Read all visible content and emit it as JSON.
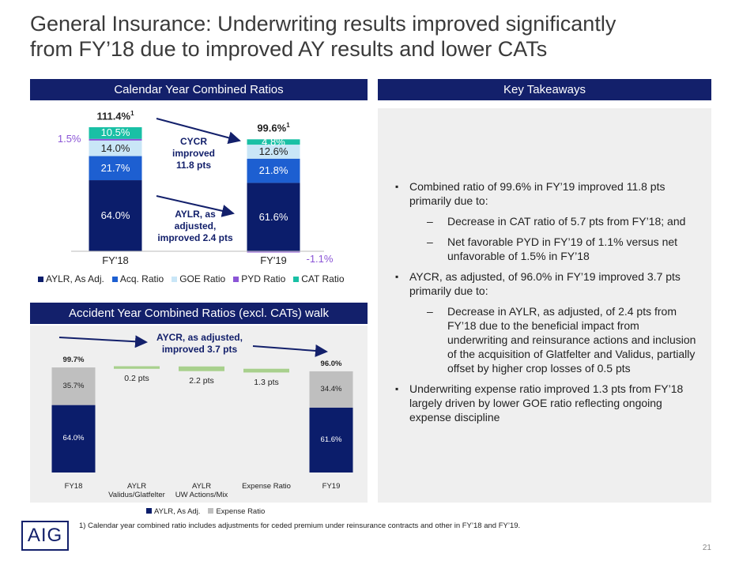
{
  "title": "General Insurance: Underwriting results improved significantly\nfrom FY’18 due to improved AY results and lower CATs",
  "chart_data": [
    {
      "type": "stacked-bar",
      "header": "Calendar Year Combined Ratios",
      "categories": [
        "FY'18",
        "FY'19"
      ],
      "series": [
        {
          "name": "AYLR, As Adj.",
          "color": "#0b1d6b",
          "values": [
            64.0,
            61.6
          ],
          "value_labels": [
            "64.0%",
            "61.6%"
          ]
        },
        {
          "name": "Acq. Ratio",
          "color": "#1d5fd1",
          "values": [
            21.7,
            21.8
          ],
          "value_labels": [
            "21.7%",
            "21.8%"
          ]
        },
        {
          "name": "GOE Ratio",
          "color": "#c9e6f7",
          "values": [
            14.0,
            12.6
          ],
          "value_labels": [
            "14.0%",
            "12.6%"
          ]
        },
        {
          "name": "PYD Ratio",
          "color": "#8b55d6",
          "values": [
            1.5,
            -1.1
          ],
          "value_labels": [
            "1.5%",
            "-1.1%"
          ]
        },
        {
          "name": "CAT Ratio",
          "color": "#19c0a5",
          "values": [
            10.5,
            4.8
          ],
          "value_labels": [
            "10.5%",
            "4.8%"
          ]
        }
      ],
      "totals": {
        "values": [
          111.4,
          99.6
        ],
        "value_labels": [
          "111.4%",
          "99.6%"
        ],
        "footnote_marker": "1"
      },
      "annotations": [
        "CYCR\nimproved\n11.8 pts",
        "AYLR, as\nadjusted,\nimproved 2.4 pts"
      ]
    },
    {
      "type": "waterfall",
      "header": "Accident Year Combined Ratios (excl. CATs) walk",
      "categories": [
        "FY18",
        "AYLR\nValidus/Glatfelter",
        "AYLR\nUW Actions/Mix",
        "Expense Ratio",
        "FY19"
      ],
      "series": [
        {
          "name": "AYLR, As Adj.",
          "color": "#0b1d6b",
          "values": [
            64.0,
            null,
            null,
            null,
            61.6
          ],
          "value_labels": [
            "64.0%",
            null,
            null,
            null,
            "61.6%"
          ]
        },
        {
          "name": "Expense Ratio",
          "color": "#bfbfbf",
          "values": [
            35.7,
            null,
            null,
            null,
            34.4
          ],
          "value_labels": [
            "35.7%",
            null,
            null,
            null,
            "34.4%"
          ]
        }
      ],
      "steps": {
        "color": "#a8d08d",
        "values": [
          null,
          0.2,
          2.2,
          1.3,
          null
        ],
        "value_labels": [
          null,
          "0.2 pts",
          "2.2 pts",
          "1.3 pts",
          null
        ]
      },
      "totals": {
        "values": [
          99.7,
          null,
          null,
          null,
          96.0
        ],
        "value_labels": [
          "99.7%",
          null,
          null,
          null,
          "96.0%"
        ]
      },
      "annotations": [
        "AYCR, as adjusted,\nimproved 3.7 pts"
      ]
    }
  ],
  "takeaways": {
    "header": "Key Takeaways",
    "bullets": [
      {
        "text": "Combined ratio of 99.6% in FY’19 improved 11.8 pts primarily due to:",
        "sub": [
          "Decrease in CAT ratio of 5.7 pts from FY’18; and",
          "Net favorable PYD in FY’19 of 1.1% versus net unfavorable of 1.5% in FY’18"
        ]
      },
      {
        "text": "AYCR, as adjusted, of 96.0% in FY’19 improved 3.7 pts primarily due to:",
        "sub": [
          "Decrease in AYLR, as adjusted, of 2.4 pts from FY’18 due to the beneficial impact from underwriting and reinsurance actions and inclusion of the acquisition of Glatfelter and Validus, partially offset by higher crop losses of 0.5 pts"
        ]
      },
      {
        "text": "Underwriting expense ratio improved 1.3 pts from FY’18 largely driven by lower GOE ratio reflecting ongoing expense discipline"
      }
    ]
  },
  "footnote": "1) Calendar year combined ratio includes adjustments for ceded premium under reinsurance contracts and other in FY’18 and FY’19.",
  "logo": "AIG",
  "page_number": "21"
}
